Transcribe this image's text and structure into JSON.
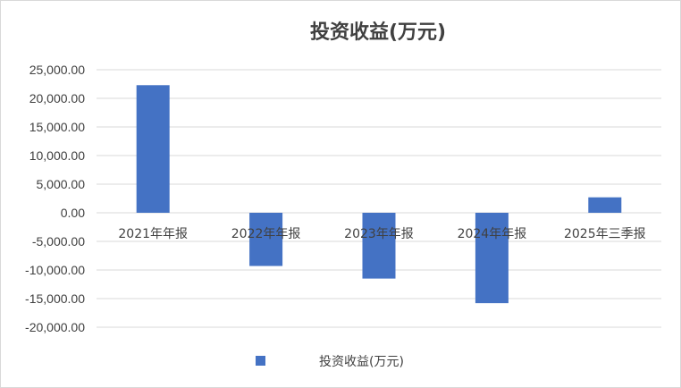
{
  "chart_data": {
    "type": "bar",
    "title": "投资收益(万元)",
    "xlabel": "",
    "ylabel": "",
    "categories": [
      "2021年年报",
      "2022年年报",
      "2023年年报",
      "2024年年报",
      "2025年三季报"
    ],
    "series": [
      {
        "name": "投资收益(万元)",
        "values": [
          22300,
          -9300,
          -11500,
          -15800,
          2700
        ],
        "color": "#4472c4"
      }
    ],
    "ylim": [
      -20000,
      25000
    ],
    "yticks": [
      25000,
      20000,
      15000,
      10000,
      5000,
      0,
      -5000,
      -10000,
      -15000,
      -20000
    ],
    "ytick_labels": [
      "25,000.00",
      "20,000.00",
      "15,000.00",
      "10,000.00",
      "5,000.00",
      "0.00",
      "-5,000.00",
      "-10,000.00",
      "-15,000.00",
      "-20,000.00"
    ],
    "grid": true,
    "gridline_color": "#d9d9d9",
    "legend_position": "bottom"
  }
}
